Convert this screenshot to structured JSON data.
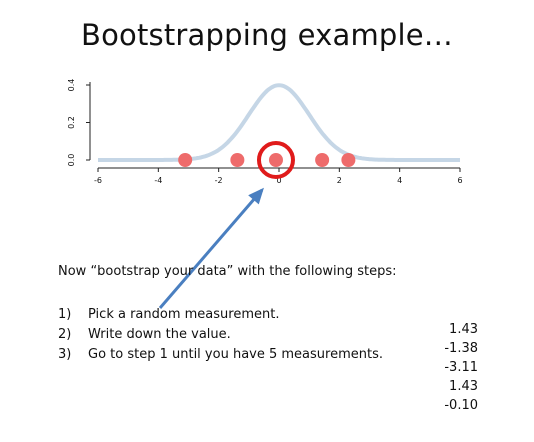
{
  "slide": {
    "title": "Bootstrapping example…",
    "intro": "Now “bootstrap your data” with the following steps:",
    "steps": [
      {
        "num": "1)",
        "text": "Pick a random measurement."
      },
      {
        "num": "2)",
        "text": "Write down the value."
      },
      {
        "num": "3)",
        "text": "Go to step 1 until you have 5 measurements."
      }
    ],
    "sampled_values": [
      "1.43",
      "-1.38",
      "-3.11",
      "1.43",
      "-0.10"
    ]
  },
  "chart_data": {
    "type": "scatter",
    "xlim": [
      -6,
      6
    ],
    "ylim": [
      0,
      0.4
    ],
    "x_ticks": [
      "-6",
      "-4",
      "-2",
      "0",
      "2",
      "4",
      "6"
    ],
    "y_ticks": [
      "0.0",
      "0.2",
      "0.4"
    ],
    "curve": {
      "mean": 0,
      "sd": 1
    },
    "points": [
      -3.11,
      -1.38,
      -0.1,
      1.43,
      2.3
    ],
    "highlighted_point": -0.1,
    "colors": {
      "curve": "#c5d6e6",
      "point": "#ee6b6b",
      "highlight_ring": "#e01b1b",
      "arrow": "#4a7fc0"
    }
  }
}
